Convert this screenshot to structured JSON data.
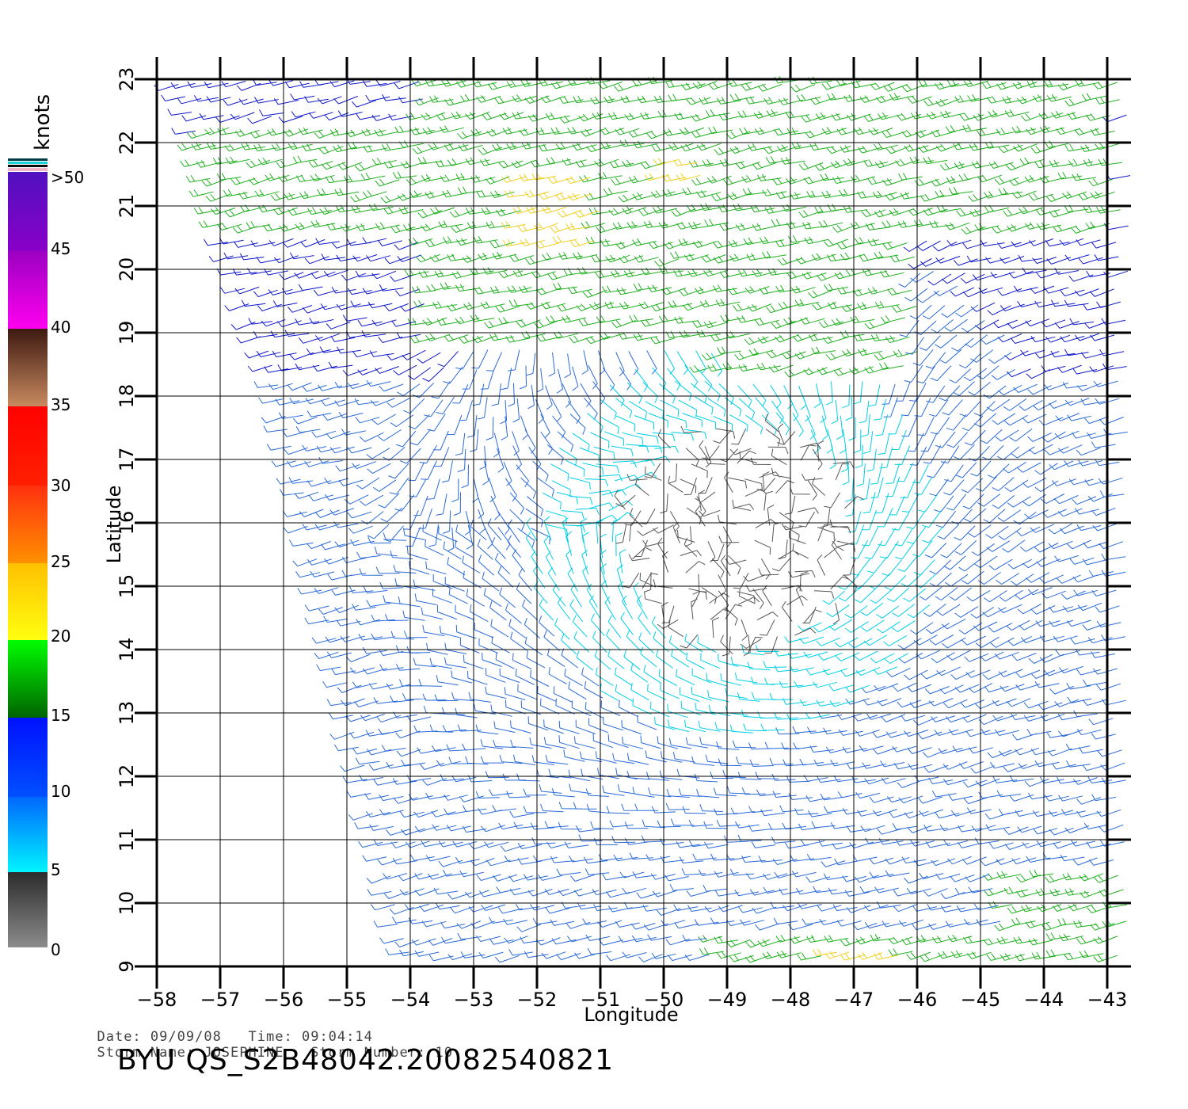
{
  "map": {
    "x_axis_label": "Longitude",
    "y_axis_label": "Latitude",
    "lon_range": [
      -58,
      -43
    ],
    "lat_range": [
      9,
      23
    ],
    "lon_ticks": [
      "-58",
      "-57",
      "-56",
      "-55",
      "-54",
      "-53",
      "-52",
      "-51",
      "-50",
      "-49",
      "-48",
      "-47",
      "-46",
      "-45",
      "-44",
      "-43"
    ],
    "lat_ticks": [
      "9",
      "10",
      "11",
      "12",
      "13",
      "14",
      "15",
      "16",
      "17",
      "18",
      "19",
      "20",
      "21",
      "22",
      "23"
    ],
    "grid": true,
    "storm_center": {
      "lon": -48.8,
      "lat": 15.8
    }
  },
  "colorbar": {
    "unit": "knots",
    "labels": [
      ">50",
      "45",
      "40",
      "35",
      "30",
      "25",
      "20",
      "15",
      "10",
      "5",
      "0"
    ],
    "colors": {
      "calm": "#555555",
      "light": "#00cfe6",
      "moderate": "#2a6ad8",
      "fresh": "#1018c8",
      "strong": "#20b020",
      "gale": "#f0d020",
      "storm": "#e06010"
    }
  },
  "footer": {
    "date_label": "Date:",
    "date": "09/09/08",
    "time_label": "Time:",
    "time": "09:04:14",
    "storm_name_label": "Storm Name:",
    "storm_name": "JOSEPHINE",
    "storm_number_label": "Storm Number:",
    "storm_number": "10",
    "product": "BYU QS_S2B48042.20082540821"
  }
}
